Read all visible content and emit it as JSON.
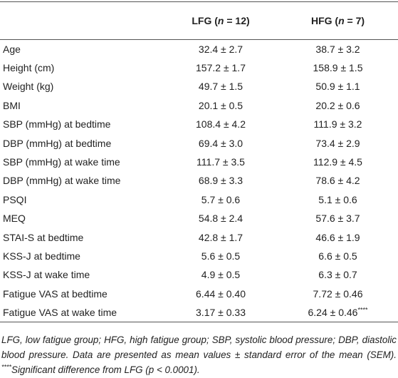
{
  "table": {
    "header": [
      [
        {
          "text": "LFG ("
        },
        {
          "text": "n",
          "style": "italic"
        },
        {
          "text": " = 12)"
        }
      ],
      [
        {
          "text": "HFG ("
        },
        {
          "text": "n",
          "style": "italic"
        },
        {
          "text": " = 7)"
        }
      ]
    ],
    "rows": [
      [
        "Age",
        "32.4 ± 2.7",
        "38.7 ± 3.2"
      ],
      [
        "Height (cm)",
        "157.2 ± 1.7",
        "158.9 ± 1.5"
      ],
      [
        "Weight (kg)",
        "49.7 ± 1.5",
        "50.9 ± 1.1"
      ],
      [
        "BMI",
        "20.1 ± 0.5",
        "20.2 ± 0.6"
      ],
      [
        "SBP (mmHg) at bedtime",
        "108.4 ± 4.2",
        "111.9 ± 3.2"
      ],
      [
        "DBP (mmHg) at bedtime",
        "69.4 ± 3.0",
        "73.4 ± 2.9"
      ],
      [
        "SBP (mmHg) at wake time",
        "111.7 ± 3.5",
        "112.9 ± 4.5"
      ],
      [
        "DBP (mmHg) at wake time",
        "68.9 ± 3.3",
        "78.6 ± 4.2"
      ],
      [
        "PSQI",
        "5.7 ± 0.6",
        "5.1 ± 0.6"
      ],
      [
        "MEQ",
        "54.8 ± 2.4",
        "57.6 ± 3.7"
      ],
      [
        "STAI-S at bedtime",
        "42.8 ± 1.7",
        "46.6 ± 1.9"
      ],
      [
        "KSS-J at bedtime",
        "5.6 ± 0.5",
        "6.6 ± 0.5"
      ],
      [
        "KSS-J at wake time",
        "4.9 ± 0.5",
        "6.3 ± 0.7"
      ],
      [
        "Fatigue VAS at bedtime",
        "6.44 ± 0.40",
        "7.72 ± 0.46"
      ],
      [
        "Fatigue VAS at wake time",
        "3.17 ± 0.33",
        [
          {
            "text": "6.24 ± 0.46"
          },
          {
            "text": "****",
            "style": "superscript"
          }
        ]
      ]
    ],
    "footnote": [
      {
        "text": "LFG, low fatigue group; HFG, high fatigue group; SBP, systolic blood pressure; DBP, diastolic blood pressure. Data are presented as mean values ± standard error of the mean (SEM). "
      },
      {
        "text": "****",
        "style": "superscript"
      },
      {
        "text": "Significant difference from LFG ("
      },
      {
        "text": "p",
        "style": "italic"
      },
      {
        "text": " < 0.0001)."
      }
    ]
  }
}
